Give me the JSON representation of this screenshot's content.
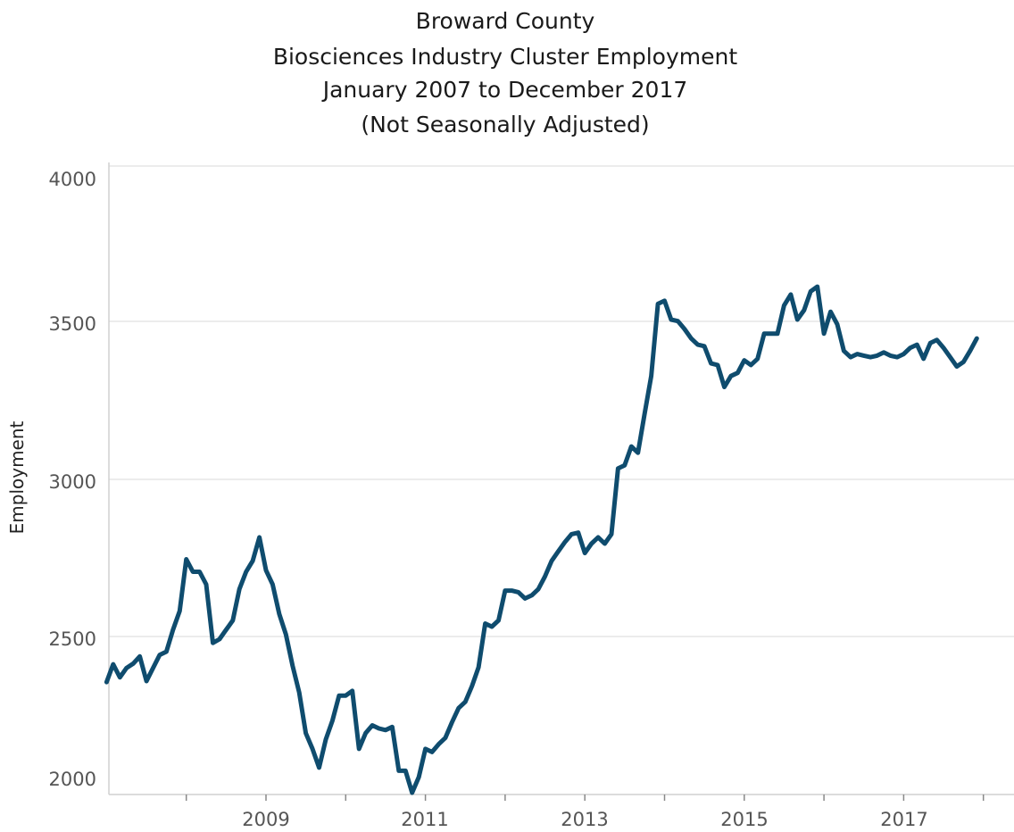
{
  "chart_data": {
    "type": "line",
    "title_lines": [
      "Broward County",
      "Biosciences Industry Cluster Employment",
      "January 2007 to December 2017",
      "(Not Seasonally Adjusted)"
    ],
    "xlabel": "",
    "ylabel": "Employment",
    "xlim": [
      "2007-01",
      "2017-12"
    ],
    "ylim": [
      2000,
      4000
    ],
    "grid": true,
    "legend": "none",
    "x_tick_labels": [
      "2009",
      "2011",
      "2013",
      "2015",
      "2017"
    ],
    "y_tick_labels": [
      "4000",
      "3500",
      "3000",
      "2500",
      "2000"
    ],
    "series_color": "#0f4c6e",
    "x": [
      "2007-01",
      "2007-02",
      "2007-03",
      "2007-04",
      "2007-05",
      "2007-06",
      "2007-07",
      "2007-08",
      "2007-09",
      "2007-10",
      "2007-11",
      "2007-12",
      "2008-01",
      "2008-02",
      "2008-03",
      "2008-04",
      "2008-05",
      "2008-06",
      "2008-07",
      "2008-08",
      "2008-09",
      "2008-10",
      "2008-11",
      "2008-12",
      "2009-01",
      "2009-02",
      "2009-03",
      "2009-04",
      "2009-05",
      "2009-06",
      "2009-07",
      "2009-08",
      "2009-09",
      "2009-10",
      "2009-11",
      "2009-12",
      "2010-01",
      "2010-02",
      "2010-03",
      "2010-04",
      "2010-05",
      "2010-06",
      "2010-07",
      "2010-08",
      "2010-09",
      "2010-10",
      "2010-11",
      "2010-12",
      "2011-01",
      "2011-02",
      "2011-03",
      "2011-04",
      "2011-05",
      "2011-06",
      "2011-07",
      "2011-08",
      "2011-09",
      "2011-10",
      "2011-11",
      "2011-12",
      "2012-01",
      "2012-02",
      "2012-03",
      "2012-04",
      "2012-05",
      "2012-06",
      "2012-07",
      "2012-08",
      "2012-09",
      "2012-10",
      "2012-11",
      "2012-12",
      "2013-01",
      "2013-02",
      "2013-03",
      "2013-04",
      "2013-05",
      "2013-06",
      "2013-07",
      "2013-08",
      "2013-09",
      "2013-10",
      "2013-11",
      "2013-12",
      "2014-01",
      "2014-02",
      "2014-03",
      "2014-04",
      "2014-05",
      "2014-06",
      "2014-07",
      "2014-08",
      "2014-09",
      "2014-10",
      "2014-11",
      "2014-12",
      "2015-01",
      "2015-02",
      "2015-03",
      "2015-04",
      "2015-05",
      "2015-06",
      "2015-07",
      "2015-08",
      "2015-09",
      "2015-10",
      "2015-11",
      "2015-12",
      "2016-01",
      "2016-02",
      "2016-03",
      "2016-04",
      "2016-05",
      "2016-06",
      "2016-07",
      "2016-08",
      "2016-09",
      "2016-10",
      "2016-11",
      "2016-12",
      "2017-01",
      "2017-02",
      "2017-03",
      "2017-04",
      "2017-05",
      "2017-06",
      "2017-07",
      "2017-08",
      "2017-09",
      "2017-10",
      "2017-11",
      "2017-12"
    ],
    "values": [
      2353,
      2410,
      2368,
      2398,
      2412,
      2435,
      2356,
      2398,
      2440,
      2450,
      2520,
      2580,
      2745,
      2705,
      2705,
      2665,
      2478,
      2490,
      2520,
      2550,
      2650,
      2705,
      2740,
      2815,
      2710,
      2665,
      2570,
      2505,
      2405,
      2320,
      2190,
      2140,
      2080,
      2170,
      2230,
      2310,
      2310,
      2325,
      2140,
      2190,
      2215,
      2205,
      2200,
      2210,
      2070,
      2070,
      2000,
      2050,
      2140,
      2130,
      2155,
      2175,
      2225,
      2270,
      2290,
      2340,
      2400,
      2540,
      2530,
      2550,
      2645,
      2645,
      2640,
      2620,
      2630,
      2650,
      2690,
      2740,
      2770,
      2800,
      2825,
      2830,
      2765,
      2795,
      2815,
      2795,
      2825,
      3035,
      3045,
      3105,
      3085,
      3210,
      3330,
      3560,
      3570,
      3510,
      3505,
      3480,
      3450,
      3430,
      3425,
      3370,
      3365,
      3295,
      3330,
      3340,
      3380,
      3365,
      3385,
      3465,
      3465,
      3465,
      3555,
      3590,
      3510,
      3540,
      3600,
      3615,
      3465,
      3535,
      3495,
      3410,
      3390,
      3400,
      3395,
      3390,
      3395,
      3405,
      3395,
      3390,
      3400,
      3420,
      3430,
      3385,
      3435,
      3445,
      3420,
      3390,
      3360,
      3375,
      3410,
      3450
    ]
  }
}
